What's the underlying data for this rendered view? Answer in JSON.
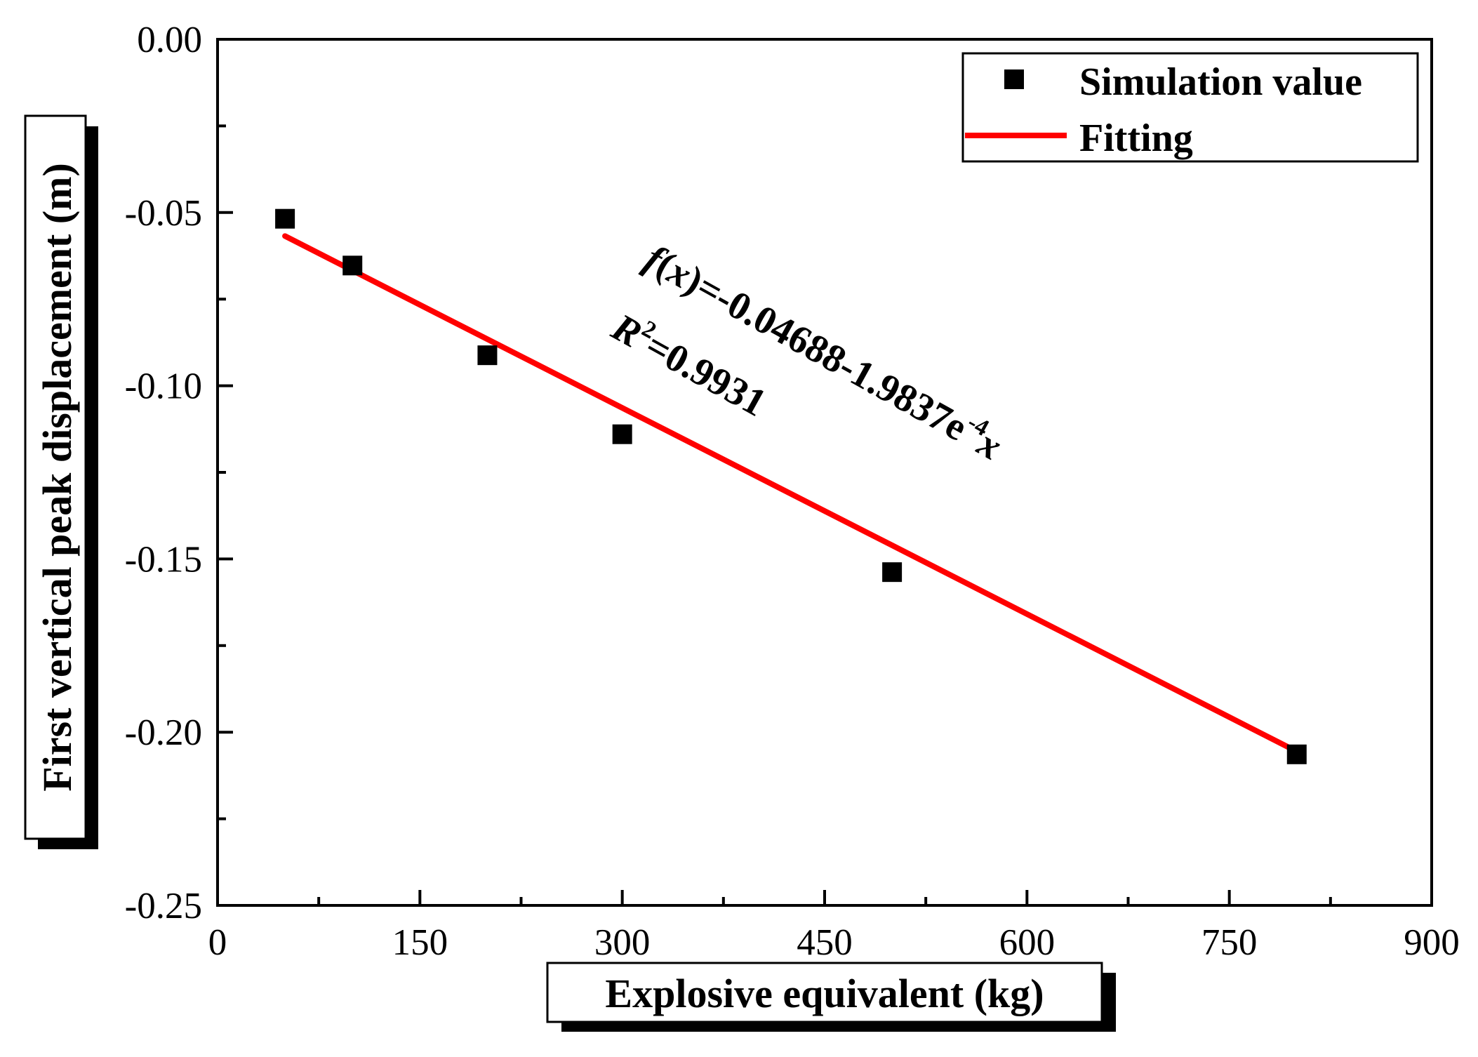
{
  "chart_data": {
    "type": "scatter",
    "xlabel": "Explosive equivalent (kg)",
    "ylabel": "First vertical peak displacement (m)",
    "xlim": [
      0,
      900
    ],
    "ylim": [
      -0.25,
      0.0
    ],
    "x_major_ticks": [
      0,
      150,
      300,
      450,
      600,
      750,
      900
    ],
    "x_tick_labels": [
      "0",
      "150",
      "300",
      "450",
      "600",
      "750",
      "900"
    ],
    "y_major_ticks": [
      0.0,
      -0.05,
      -0.1,
      -0.15,
      -0.2,
      -0.25
    ],
    "y_tick_labels": [
      "0.00",
      "-0.05",
      "-0.10",
      "-0.15",
      "-0.20",
      "-0.25"
    ],
    "grid": false,
    "legend_position": "top-right",
    "series": [
      {
        "name": "Simulation value",
        "kind": "scatter",
        "marker": "square",
        "color": "#000000",
        "x": [
          50,
          100,
          200,
          300,
          500,
          800
        ],
        "y": [
          -0.0518,
          -0.0653,
          -0.0912,
          -0.114,
          -0.1538,
          -0.2064
        ]
      },
      {
        "name": "Fitting",
        "kind": "line",
        "color": "#ff0000",
        "intercept": -0.04688,
        "slope": -0.00019837,
        "x_range": [
          50,
          800
        ]
      }
    ],
    "annotations": {
      "equation_prefix": "f",
      "equation_open": "(",
      "equation_var": "x",
      "equation_close": ")",
      "equation_body": "=-0.04688-1.9837e",
      "equation_exp": "-4",
      "equation_tail": "x",
      "r2_symbol": "R",
      "r2_sup": "2",
      "r2_value": "=0.9931"
    }
  }
}
